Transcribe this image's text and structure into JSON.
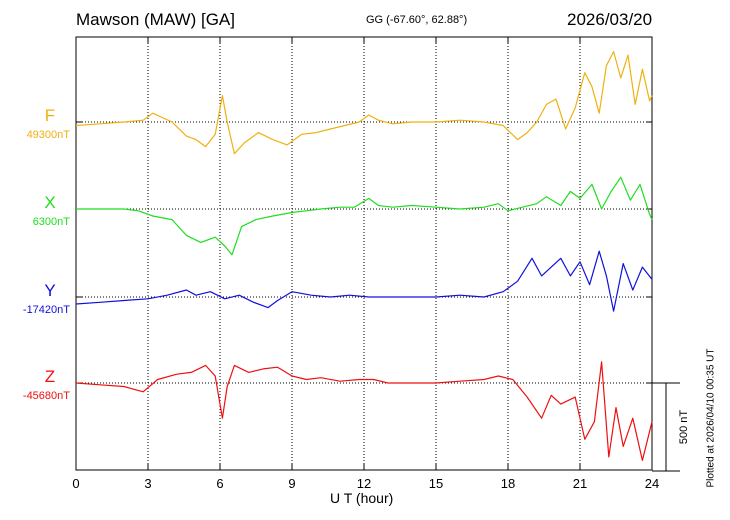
{
  "header": {
    "station": "Mawson (MAW)  [GA]",
    "coords": "GG (-67.60°,  62.88°)",
    "date": "2026/03/20"
  },
  "footer": {
    "plotted": "Plotted at 2026/04/10 00:35 UT"
  },
  "colors": {
    "F": "#f0b010",
    "X": "#20dd20",
    "Y": "#1010dd",
    "Z": "#ee1010"
  },
  "chart_data": {
    "type": "line",
    "xlabel": "U T (hour)",
    "xlim": [
      0,
      24
    ],
    "xticks": [
      "0",
      "3",
      "6",
      "9",
      "12",
      "15",
      "18",
      "21",
      "24"
    ],
    "scale_bar": {
      "label": "500 nT",
      "value_nT": 500
    },
    "series": [
      {
        "name": "F",
        "baseline_label": "49300nT",
        "baseline": 49300,
        "x": [
          0,
          1,
          2,
          2.8,
          3.2,
          4,
          4.6,
          5.0,
          5.4,
          5.8,
          6.1,
          6.3,
          6.6,
          7,
          7.6,
          8.2,
          8.8,
          9.4,
          10,
          10.6,
          11.2,
          11.8,
          12.2,
          12.6,
          13.2,
          14,
          15,
          16,
          17,
          17.8,
          18.4,
          18.8,
          19.2,
          19.6,
          20,
          20.4,
          20.8,
          21.2,
          21.5,
          21.8,
          22.1,
          22.4,
          22.7,
          23.0,
          23.3,
          23.6,
          23.9,
          24
        ],
        "values": [
          49280,
          49290,
          49300,
          49310,
          49350,
          49300,
          49220,
          49200,
          49160,
          49230,
          49450,
          49300,
          49120,
          49180,
          49240,
          49200,
          49170,
          49230,
          49240,
          49260,
          49280,
          49300,
          49340,
          49310,
          49290,
          49300,
          49300,
          49310,
          49300,
          49280,
          49200,
          49240,
          49300,
          49400,
          49430,
          49260,
          49380,
          49580,
          49500,
          49350,
          49620,
          49700,
          49550,
          49680,
          49400,
          49600,
          49420,
          49450
        ]
      },
      {
        "name": "X",
        "baseline_label": "6300nT",
        "baseline": 6300,
        "x": [
          0,
          1,
          2,
          2.6,
          3.2,
          4,
          4.6,
          5.2,
          5.8,
          6.2,
          6.5,
          6.9,
          7.5,
          8.2,
          9,
          9.6,
          10.2,
          11,
          11.6,
          12.2,
          12.6,
          13.2,
          14,
          15,
          16,
          17,
          17.6,
          18,
          18.6,
          19.2,
          19.6,
          20.2,
          20.6,
          21,
          21.5,
          21.9,
          22.3,
          22.7,
          23.1,
          23.5,
          23.9,
          24
        ],
        "values": [
          6300,
          6300,
          6300,
          6290,
          6260,
          6240,
          6150,
          6110,
          6140,
          6090,
          6040,
          6200,
          6240,
          6260,
          6280,
          6290,
          6300,
          6310,
          6310,
          6360,
          6320,
          6310,
          6320,
          6310,
          6300,
          6310,
          6330,
          6290,
          6310,
          6330,
          6370,
          6320,
          6400,
          6360,
          6440,
          6300,
          6400,
          6480,
          6350,
          6440,
          6270,
          6240
        ]
      },
      {
        "name": "Y",
        "baseline_label": "-17420nT",
        "baseline": -17420,
        "x": [
          0,
          1,
          2,
          3,
          3.8,
          4.6,
          5.0,
          5.6,
          6.2,
          6.8,
          7.4,
          8.0,
          8.4,
          9.0,
          9.8,
          10.6,
          11.4,
          12.2,
          13,
          14,
          15,
          16,
          17,
          17.8,
          18.4,
          19,
          19.4,
          19.8,
          20.2,
          20.6,
          21,
          21.4,
          21.8,
          22.1,
          22.4,
          22.8,
          23.2,
          23.6,
          24
        ],
        "values": [
          -17460,
          -17450,
          -17440,
          -17430,
          -17410,
          -17380,
          -17410,
          -17390,
          -17430,
          -17410,
          -17450,
          -17480,
          -17440,
          -17390,
          -17410,
          -17420,
          -17410,
          -17420,
          -17420,
          -17420,
          -17420,
          -17410,
          -17420,
          -17390,
          -17330,
          -17200,
          -17300,
          -17250,
          -17200,
          -17300,
          -17220,
          -17350,
          -17160,
          -17300,
          -17500,
          -17230,
          -17380,
          -17250,
          -17320
        ]
      },
      {
        "name": "Z",
        "baseline_label": "-45680nT",
        "baseline": -45680,
        "x": [
          0,
          1,
          2,
          2.8,
          3.4,
          4.2,
          4.8,
          5.4,
          5.8,
          6.1,
          6.3,
          6.6,
          7.2,
          7.8,
          8.4,
          9.0,
          9.6,
          10.2,
          11,
          11.8,
          12.4,
          13,
          14,
          15,
          16,
          17,
          17.6,
          18.2,
          18.8,
          19.4,
          19.8,
          20.2,
          20.8,
          21.2,
          21.6,
          21.9,
          22.2,
          22.5,
          22.8,
          23.2,
          23.6,
          24
        ],
        "values": [
          -45680,
          -45690,
          -45700,
          -45730,
          -45660,
          -45630,
          -45620,
          -45580,
          -45640,
          -45880,
          -45700,
          -45580,
          -45620,
          -45600,
          -45590,
          -45640,
          -45660,
          -45650,
          -45670,
          -45660,
          -45660,
          -45680,
          -45680,
          -45680,
          -45670,
          -45660,
          -45640,
          -45660,
          -45760,
          -45880,
          -45750,
          -45800,
          -45760,
          -46000,
          -45900,
          -45560,
          -46100,
          -45820,
          -46040,
          -45880,
          -46120,
          -45900
        ]
      }
    ]
  }
}
